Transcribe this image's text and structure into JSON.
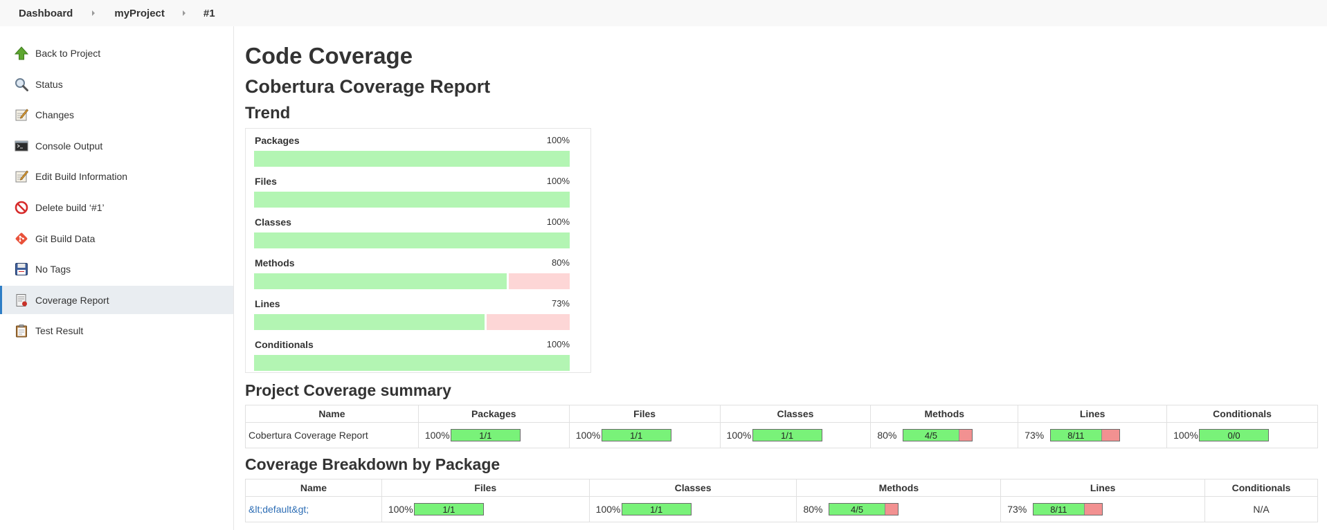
{
  "breadcrumb": [
    "Dashboard",
    "myProject",
    "#1"
  ],
  "sidebar": {
    "items": [
      {
        "label": "Back to Project",
        "icon": "up-arrow-icon"
      },
      {
        "label": "Status",
        "icon": "magnifier-icon"
      },
      {
        "label": "Changes",
        "icon": "notepad-icon"
      },
      {
        "label": "Console Output",
        "icon": "terminal-icon"
      },
      {
        "label": "Edit Build Information",
        "icon": "notepad-icon"
      },
      {
        "label": "Delete build ‘#1’",
        "icon": "no-entry-icon"
      },
      {
        "label": "Git Build Data",
        "icon": "git-icon"
      },
      {
        "label": "No Tags",
        "icon": "floppy-disk-icon"
      },
      {
        "label": "Coverage Report",
        "icon": "report-icon",
        "active": true
      },
      {
        "label": "Test Result",
        "icon": "clipboard-icon"
      }
    ]
  },
  "main": {
    "title": "Code Coverage",
    "subtitle": "Cobertura Coverage Report",
    "trend_title": "Trend",
    "summary_title": "Project Coverage summary",
    "breakdown_title": "Coverage Breakdown by Package"
  },
  "trend": [
    {
      "label": "Packages",
      "pct": "100%",
      "value": 1.0
    },
    {
      "label": "Files",
      "pct": "100%",
      "value": 1.0
    },
    {
      "label": "Classes",
      "pct": "100%",
      "value": 1.0
    },
    {
      "label": "Methods",
      "pct": "80%",
      "value": 0.8
    },
    {
      "label": "Lines",
      "pct": "73%",
      "value": 0.73
    },
    {
      "label": "Conditionals",
      "pct": "100%",
      "value": 1.0
    }
  ],
  "summary": {
    "headers": [
      "Name",
      "Packages",
      "Files",
      "Classes",
      "Methods",
      "Lines",
      "Conditionals"
    ],
    "row": {
      "name": "Cobertura Coverage Report",
      "cells": [
        {
          "pct": "100%",
          "ratio": "1/1",
          "value": 1.0
        },
        {
          "pct": "100%",
          "ratio": "1/1",
          "value": 1.0
        },
        {
          "pct": "100%",
          "ratio": "1/1",
          "value": 1.0
        },
        {
          "pct": "80%",
          "ratio": "4/5",
          "value": 0.8
        },
        {
          "pct": "73%",
          "ratio": "8/11",
          "value": 0.73
        },
        {
          "pct": "100%",
          "ratio": "0/0",
          "value": 1.0
        }
      ]
    }
  },
  "breakdown": {
    "headers": [
      "Name",
      "Files",
      "Classes",
      "Methods",
      "Lines",
      "Conditionals"
    ],
    "row": {
      "name": "&lt;default&gt;",
      "cells": [
        {
          "pct": "100%",
          "ratio": "1/1",
          "value": 1.0
        },
        {
          "pct": "100%",
          "ratio": "1/1",
          "value": 1.0
        },
        {
          "pct": "80%",
          "ratio": "4/5",
          "value": 0.8
        },
        {
          "pct": "73%",
          "ratio": "8/11",
          "value": 0.73
        }
      ],
      "conditionals": "N/A"
    }
  },
  "colors": {
    "trend_covered": "#b3f5b3",
    "trend_missed": "#fdd6d6",
    "bar_covered": "#79f279",
    "bar_missed": "#f29191",
    "active_accent": "#2e7ec6",
    "link": "#2e6eb5"
  }
}
